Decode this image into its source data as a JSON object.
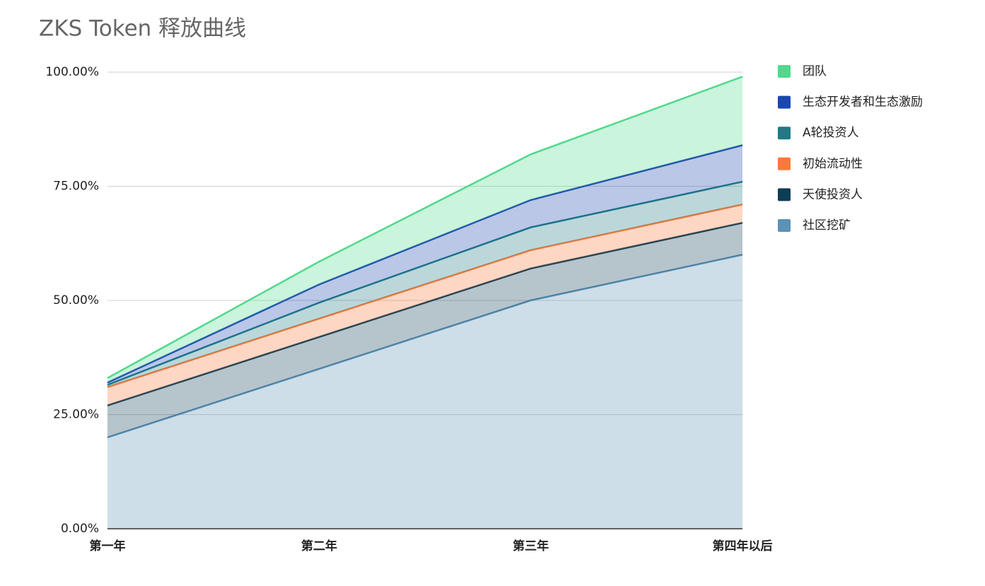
{
  "chart_data": {
    "type": "stacked-area",
    "title": "ZKS Token 释放曲线",
    "categories": [
      "第一年",
      "第二年",
      "第三年",
      "第四年以后"
    ],
    "series": [
      {
        "name": "团队",
        "color": "#4fd98c",
        "values": [
          1,
          5,
          10,
          15
        ]
      },
      {
        "name": "生态开发者和生态激励",
        "color": "#1a47b0",
        "values": [
          0.5,
          4,
          6,
          8
        ]
      },
      {
        "name": "A轮投资人",
        "color": "#1f7a86",
        "values": [
          0.5,
          3.5,
          5,
          5
        ]
      },
      {
        "name": "初始流动性",
        "color": "#f87a3a",
        "values": [
          4,
          4,
          4,
          4
        ]
      },
      {
        "name": "天使投资人",
        "color": "#0d3d55",
        "values": [
          7,
          7,
          7,
          7
        ]
      },
      {
        "name": "社区挖矿",
        "color": "#5b92b5",
        "values": [
          20,
          35,
          50,
          60
        ]
      }
    ],
    "ylim": [
      0,
      100
    ],
    "yticks": [
      {
        "value": 0,
        "label": "0.00%"
      },
      {
        "value": 25,
        "label": "25.00%"
      },
      {
        "value": 50,
        "label": "50.00%"
      },
      {
        "value": 75,
        "label": "75.00%"
      },
      {
        "value": 100,
        "label": "100.00%"
      }
    ],
    "grid": true,
    "legend": "right"
  }
}
